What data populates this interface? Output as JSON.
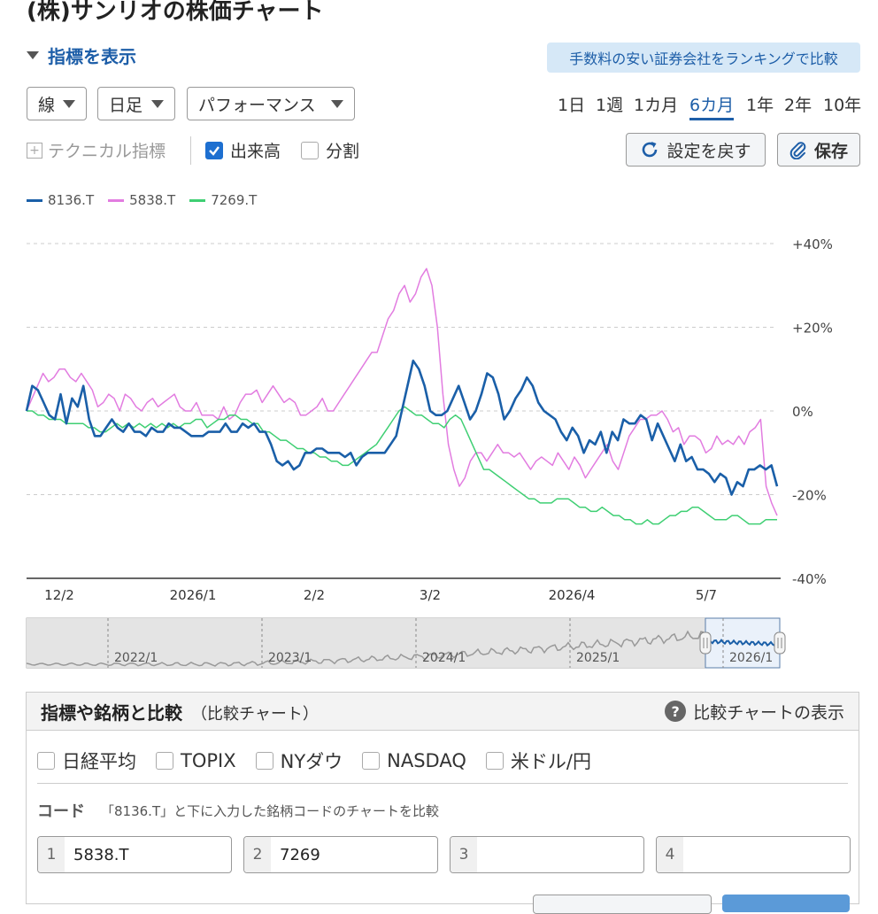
{
  "page": {
    "title": "(株)サンリオの株価チャート"
  },
  "controls": {
    "toggle_label": "指標を表示",
    "ranking_button": "手数料の安い証券会社をランキングで比較",
    "select_type": "線",
    "select_interval": "日足",
    "select_mode": "パフォーマンス",
    "periods": [
      "1日",
      "1週",
      "1カ月",
      "6カ月",
      "1年",
      "2年",
      "10年"
    ],
    "active_period": "6カ月",
    "technical_label": "テクニカル指標",
    "volume_label": "出来高",
    "volume_checked": true,
    "split_label": "分割",
    "split_checked": false,
    "reset_label": "設定を戻す",
    "save_label": "保存"
  },
  "chart_data": {
    "type": "line",
    "y_unit": "%",
    "ylim": [
      -40,
      40
    ],
    "y_ticks": [
      "+40%",
      "+20%",
      "0%",
      "-20%",
      "-40%"
    ],
    "x_ticks": [
      "12/2",
      "2026/1",
      "2/2",
      "3/2",
      "2026/4",
      "5/7"
    ],
    "grid": true,
    "legend_placement": "top-left",
    "series": [
      {
        "name": "8136.T",
        "color": "#1a5fa8",
        "values": [
          0,
          6,
          5,
          2,
          -1,
          -2,
          4,
          -3,
          3,
          1,
          6,
          -2,
          -6,
          -6,
          -4,
          -2,
          -4,
          -5,
          -3,
          -5,
          -5,
          -6,
          -4,
          -5,
          -5,
          -3,
          -4,
          -4,
          -5,
          -6,
          -6,
          -6,
          -5,
          -5,
          -5,
          -3,
          -5,
          -5,
          -3,
          -4,
          -3,
          -5,
          -5,
          -8,
          -12,
          -13,
          -12,
          -14,
          -13,
          -10,
          -10,
          -9,
          -9,
          -10,
          -10,
          -10,
          -11,
          -10,
          -13,
          -11,
          -10,
          -10,
          -10,
          -10,
          -8,
          -6,
          0,
          6,
          12,
          10,
          6,
          0,
          -1,
          -1,
          0,
          3,
          6,
          2,
          -2,
          0,
          4,
          9,
          8,
          4,
          -2,
          0,
          3,
          5,
          8,
          6,
          2,
          0,
          -1,
          -2,
          -5,
          -7,
          -4,
          -6,
          -10,
          -7,
          -8,
          -5,
          -10,
          -5,
          -7,
          -2,
          -3,
          -3,
          -1,
          -2,
          -7,
          -3,
          -6,
          -9,
          -12,
          -8,
          -12,
          -11,
          -14,
          -14,
          -15,
          -17,
          -15,
          -16,
          -20,
          -17,
          -18,
          -14,
          -14,
          -13,
          -14,
          -13,
          -18
        ]
      },
      {
        "name": "5838.T",
        "color": "#e27ce0",
        "values": [
          0,
          3,
          6,
          9,
          7,
          8,
          10,
          10,
          8,
          7,
          9,
          7,
          5,
          1,
          2,
          4,
          3,
          0,
          4,
          3,
          1,
          0,
          2,
          3,
          1,
          2,
          3,
          4,
          1,
          0,
          0,
          2,
          -1,
          -1,
          -1,
          -2,
          1,
          -2,
          -1,
          2,
          4,
          4,
          5,
          2,
          4,
          6,
          4,
          2,
          3,
          2,
          -1,
          -1,
          0,
          1,
          3,
          0,
          0,
          2,
          4,
          6,
          8,
          10,
          12,
          14,
          14,
          18,
          22,
          24,
          28,
          30,
          26,
          28,
          32,
          34,
          30,
          20,
          4,
          -8,
          -14,
          -18,
          -16,
          -12,
          -10,
          -10,
          -12,
          -10,
          -8,
          -10,
          -10,
          -11,
          -10,
          -12,
          -14,
          -12,
          -11,
          -12,
          -13,
          -10,
          -12,
          -14,
          -11,
          -13,
          -16,
          -14,
          -12,
          -10,
          -8,
          -12,
          -14,
          -10,
          -6,
          -4,
          -2,
          -2,
          -1,
          -1,
          0,
          -2,
          -5,
          -4,
          -8,
          -6,
          -6,
          -7,
          -10,
          -9,
          -6,
          -8,
          -7,
          -8,
          -6,
          -8,
          -5,
          -4,
          -2,
          -18,
          -22,
          -25
        ]
      },
      {
        "name": "7269.T",
        "color": "#3fcf73",
        "values": [
          0,
          0,
          -1,
          -1,
          -2,
          -2,
          -2,
          -3,
          -3,
          -3,
          -3,
          -4,
          -4,
          -5,
          -5,
          -4,
          -3,
          -4,
          -3,
          -4,
          -3,
          -4,
          -3,
          -4,
          -3,
          -4,
          -3,
          -4,
          -3,
          -3,
          -2,
          -2,
          -4,
          -3,
          -2,
          -2,
          -1,
          -1,
          -2,
          -2,
          -3,
          -3,
          -5,
          -5,
          -6,
          -7,
          -7,
          -8,
          -9,
          -9,
          -10,
          -10,
          -11,
          -11,
          -12,
          -12,
          -13,
          -13,
          -12,
          -11,
          -10,
          -9,
          -8,
          -6,
          -4,
          -2,
          0,
          1,
          0,
          -1,
          -1,
          -2,
          -3,
          -3,
          -4,
          -2,
          -1,
          -2,
          -5,
          -8,
          -11,
          -14,
          -14,
          -15,
          -16,
          -17,
          -18,
          -19,
          -20,
          -21,
          -21,
          -22,
          -22,
          -22,
          -21,
          -21,
          -21,
          -22,
          -23,
          -23,
          -24,
          -24,
          -23,
          -24,
          -25,
          -25,
          -26,
          -26,
          -27,
          -27,
          -26,
          -27,
          -27,
          -26,
          -25,
          -25,
          -24,
          -24,
          -23,
          -23,
          -24,
          -25,
          -26,
          -26,
          -26,
          -25,
          -25,
          -26,
          -27,
          -27,
          -27,
          -26,
          -26,
          -26
        ]
      }
    ]
  },
  "navigator": {
    "labels": [
      "2022/1",
      "2023/1",
      "2024/1",
      "2025/1",
      "2026/1"
    ]
  },
  "compare": {
    "title": "指標や銘柄と比較",
    "subtitle": "（比較チャート）",
    "help_label": "比較チャートの表示",
    "indices": [
      "日経平均",
      "TOPIX",
      "NYダウ",
      "NASDAQ",
      "米ドル/円"
    ],
    "code_label": "コード",
    "code_desc": "「8136.T」と下に入力した銘柄コードのチャートを比較",
    "inputs": [
      {
        "num": "1",
        "value": "5838.T"
      },
      {
        "num": "2",
        "value": "7269"
      },
      {
        "num": "3",
        "value": ""
      },
      {
        "num": "4",
        "value": ""
      }
    ]
  }
}
